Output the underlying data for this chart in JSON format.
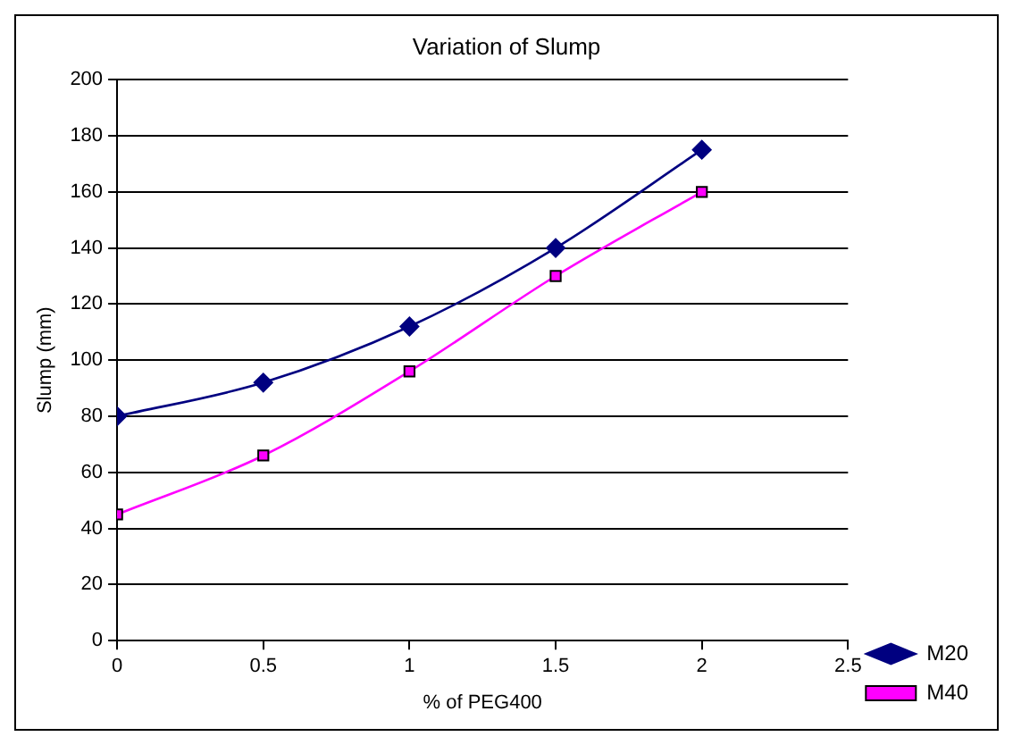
{
  "chart_data": {
    "type": "line",
    "title": "Variation of Slump",
    "xlabel": "% of PEG400",
    "ylabel": "Slump (mm)",
    "x": [
      0,
      0.5,
      1,
      1.5,
      2
    ],
    "series": [
      {
        "name": "M20",
        "color": "#000080",
        "values": [
          80,
          92,
          112,
          140,
          175
        ],
        "marker": "diamond"
      },
      {
        "name": "M40",
        "color": "#ff00ff",
        "values": [
          45,
          66,
          96,
          130,
          160
        ],
        "marker": "square"
      }
    ],
    "xlim": [
      0,
      2.5
    ],
    "xticks": [
      0,
      0.5,
      1,
      1.5,
      2,
      2.5
    ],
    "ylim": [
      0,
      200
    ],
    "yticks": [
      0,
      20,
      40,
      60,
      80,
      100,
      120,
      140,
      160,
      180,
      200
    ],
    "grid": "y",
    "legend": "bottom right",
    "line_style": "solid"
  }
}
